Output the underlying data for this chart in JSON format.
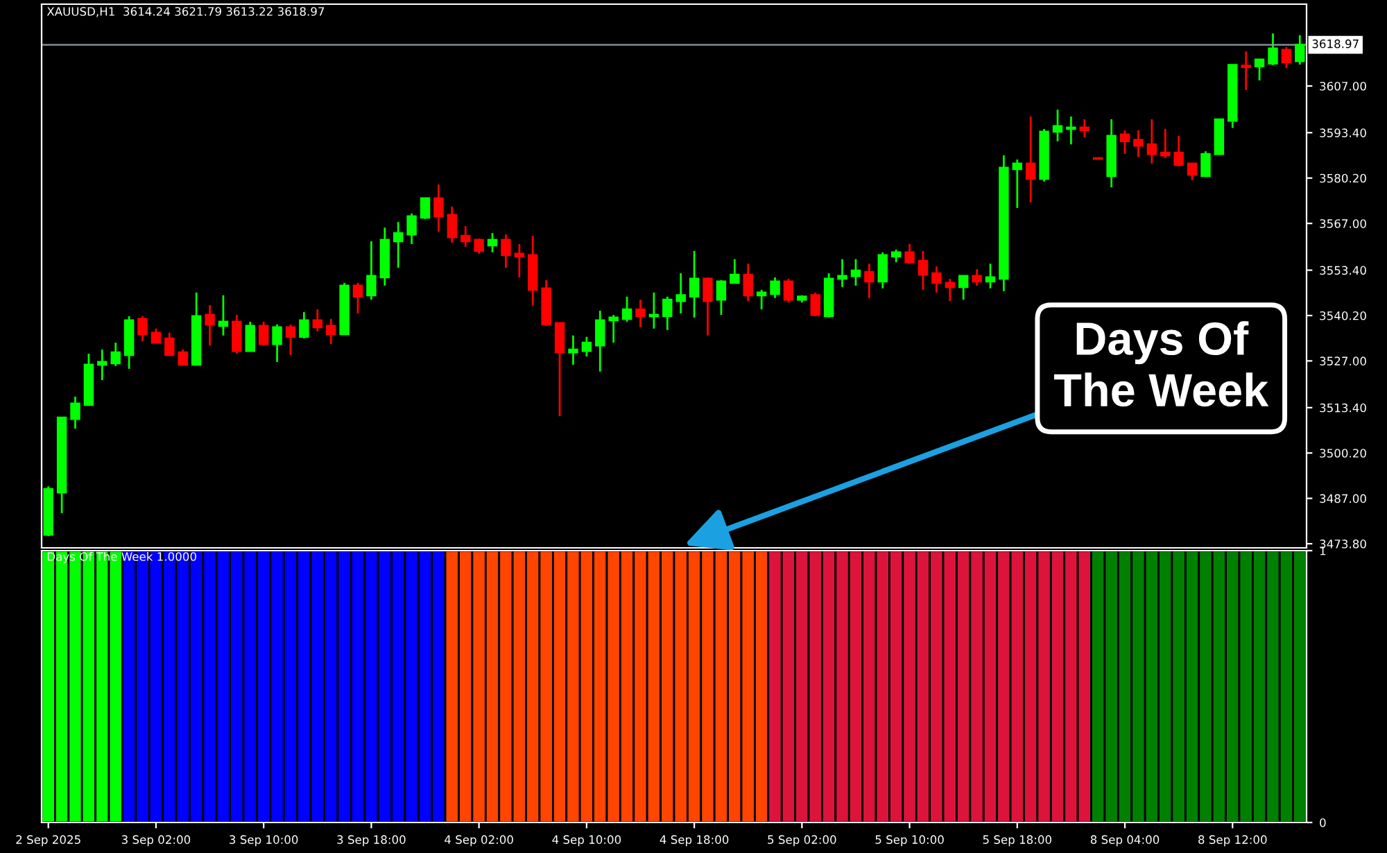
{
  "chart_data": [
    {
      "type": "candlestick",
      "title": "XAUUSD,H1  3614.24 3621.79 3613.22 3618.97",
      "categories": [
        null,
        null,
        null,
        null,
        null,
        null,
        null,
        null,
        null,
        null,
        null,
        null,
        null,
        null,
        null,
        null,
        null,
        null,
        null,
        null,
        null,
        null,
        null,
        null,
        null,
        null,
        null,
        null,
        null,
        null,
        null,
        null,
        null,
        null,
        null,
        null,
        null,
        null,
        null,
        null,
        null,
        null,
        null,
        null,
        null,
        null,
        null,
        null,
        null,
        null,
        null,
        null,
        null,
        null,
        null,
        null,
        null,
        null,
        null,
        null,
        null,
        null,
        null,
        null,
        null,
        null,
        null,
        null,
        null,
        null,
        null,
        null,
        null,
        null,
        null,
        null,
        null,
        null,
        null,
        null,
        null,
        null,
        null,
        null,
        null,
        null,
        null,
        null,
        null,
        null,
        null,
        null,
        null,
        null
      ],
      "ohlc": [
        [
          3476.4,
          3490.5,
          3476.0,
          3489.7
        ],
        [
          3488.7,
          3510.5,
          3482.7,
          3510.5
        ],
        [
          3510.1,
          3516.6,
          3507.3,
          3514.6
        ],
        [
          3514.2,
          3529.1,
          3514.2,
          3525.9
        ],
        [
          3525.9,
          3530.3,
          3521.4,
          3526.7
        ],
        [
          3526.3,
          3532.3,
          3525.5,
          3529.5
        ],
        [
          3528.7,
          3540.0,
          3524.7,
          3538.8
        ],
        [
          3539.2,
          3540.0,
          3532.7,
          3534.8
        ],
        [
          3535.2,
          3536.4,
          3532.3,
          3532.3
        ],
        [
          3533.5,
          3535.2,
          3528.7,
          3528.7
        ],
        [
          3529.5,
          3530.3,
          3525.9,
          3525.9
        ],
        [
          3525.9,
          3546.9,
          3525.9,
          3540.0
        ],
        [
          3540.4,
          3543.2,
          3531.5,
          3537.6
        ],
        [
          3537.2,
          3546.1,
          3534.4,
          3538.4
        ],
        [
          3538.4,
          3540.4,
          3529.1,
          3529.9
        ],
        [
          3529.9,
          3538.4,
          3529.9,
          3537.2
        ],
        [
          3537.2,
          3538.4,
          3531.5,
          3531.9
        ],
        [
          3531.9,
          3537.6,
          3526.7,
          3536.8
        ],
        [
          3536.8,
          3537.6,
          3528.7,
          3534.0
        ],
        [
          3534.0,
          3541.2,
          3533.5,
          3538.8
        ],
        [
          3538.8,
          3542.0,
          3535.6,
          3536.8
        ],
        [
          3537.2,
          3539.2,
          3531.9,
          3534.8
        ],
        [
          3534.8,
          3549.7,
          3534.8,
          3548.9
        ],
        [
          3548.9,
          3549.7,
          3540.8,
          3545.7
        ],
        [
          3546.1,
          3561.8,
          3544.8,
          3551.7
        ],
        [
          3551.3,
          3565.8,
          3548.9,
          3562.2
        ],
        [
          3561.8,
          3567.4,
          3554.1,
          3564.2
        ],
        [
          3563.8,
          3569.9,
          3561.0,
          3569.1
        ],
        [
          3568.7,
          3574.3,
          3568.3,
          3574.3
        ],
        [
          3574.3,
          3578.3,
          3564.6,
          3569.1
        ],
        [
          3569.5,
          3571.9,
          3561.4,
          3563.0
        ],
        [
          3563.4,
          3566.2,
          3560.2,
          3561.8
        ],
        [
          3562.2,
          3562.6,
          3558.2,
          3559.0
        ],
        [
          3560.6,
          3564.2,
          3558.6,
          3562.2
        ],
        [
          3562.2,
          3563.8,
          3554.1,
          3557.8
        ],
        [
          3558.2,
          3561.0,
          3551.3,
          3557.4
        ],
        [
          3557.8,
          3563.4,
          3543.2,
          3547.7
        ],
        [
          3548.1,
          3550.5,
          3537.2,
          3537.6
        ],
        [
          3538.0,
          3538.0,
          3510.9,
          3529.5
        ],
        [
          3529.5,
          3534.4,
          3525.9,
          3530.3
        ],
        [
          3529.9,
          3534.0,
          3528.3,
          3532.3
        ],
        [
          3531.5,
          3541.6,
          3523.9,
          3538.8
        ],
        [
          3538.8,
          3540.4,
          3532.3,
          3539.6
        ],
        [
          3539.2,
          3545.7,
          3538.4,
          3542.0
        ],
        [
          3542.0,
          3544.8,
          3536.8,
          3540.0
        ],
        [
          3540.0,
          3546.9,
          3536.4,
          3540.4
        ],
        [
          3540.0,
          3545.7,
          3536.0,
          3544.8
        ],
        [
          3544.4,
          3552.5,
          3540.8,
          3546.1
        ],
        [
          3545.7,
          3559.0,
          3539.6,
          3550.9
        ],
        [
          3550.9,
          3551.3,
          3534.4,
          3544.4
        ],
        [
          3544.8,
          3550.5,
          3540.4,
          3550.1
        ],
        [
          3549.7,
          3556.6,
          3549.7,
          3552.1
        ],
        [
          3552.1,
          3555.3,
          3544.4,
          3546.1
        ],
        [
          3546.1,
          3547.7,
          3542.0,
          3546.9
        ],
        [
          3546.5,
          3551.3,
          3545.3,
          3550.1
        ],
        [
          3550.1,
          3550.9,
          3544.0,
          3544.8
        ],
        [
          3544.8,
          3546.1,
          3544.0,
          3545.7
        ],
        [
          3546.1,
          3546.9,
          3540.0,
          3540.4
        ],
        [
          3540.0,
          3552.5,
          3539.6,
          3550.9
        ],
        [
          3550.9,
          3556.6,
          3548.5,
          3551.7
        ],
        [
          3551.7,
          3556.6,
          3548.9,
          3553.3
        ],
        [
          3552.9,
          3555.3,
          3545.3,
          3550.1
        ],
        [
          3550.1,
          3558.6,
          3548.1,
          3557.8
        ],
        [
          3557.4,
          3559.4,
          3555.7,
          3558.6
        ],
        [
          3558.6,
          3561.0,
          3555.3,
          3555.7
        ],
        [
          3556.1,
          3559.0,
          3547.7,
          3552.1
        ],
        [
          3552.5,
          3554.5,
          3546.9,
          3549.7
        ],
        [
          3549.7,
          3550.9,
          3544.4,
          3548.5
        ],
        [
          3548.5,
          3551.7,
          3544.8,
          3551.7
        ],
        [
          3551.7,
          3553.7,
          3548.9,
          3550.1
        ],
        [
          3550.1,
          3555.3,
          3548.1,
          3551.3
        ],
        [
          3550.9,
          3586.8,
          3547.3,
          3583.2
        ],
        [
          3582.8,
          3585.6,
          3571.5,
          3584.4
        ],
        [
          3584.4,
          3598.1,
          3573.1,
          3580.0
        ],
        [
          3580.0,
          3594.5,
          3579.2,
          3593.7
        ],
        [
          3593.7,
          3600.1,
          3590.9,
          3595.3
        ],
        [
          3594.5,
          3598.1,
          3590.0,
          3594.9
        ],
        [
          3594.9,
          3597.3,
          3592.1,
          3594.1
        ],
        [
          3586.0,
          3586.0,
          3585.8,
          3585.8
        ],
        [
          3580.8,
          3597.3,
          3577.5,
          3592.5
        ],
        [
          3592.9,
          3594.1,
          3587.2,
          3590.9
        ],
        [
          3591.3,
          3594.1,
          3586.4,
          3589.6
        ],
        [
          3590.0,
          3597.3,
          3584.4,
          3587.2
        ],
        [
          3587.6,
          3594.5,
          3586.0,
          3586.8
        ],
        [
          3587.6,
          3592.5,
          3583.6,
          3584.0
        ],
        [
          3584.4,
          3584.4,
          3579.6,
          3581.2
        ],
        [
          3580.8,
          3588.0,
          3580.8,
          3587.2
        ],
        [
          3587.2,
          3597.3,
          3587.2,
          3597.3
        ],
        [
          3596.9,
          3613.1,
          3594.8,
          3613.1
        ],
        [
          3612.9,
          3617.1,
          3605.8,
          3612.5
        ],
        [
          3612.7,
          3614.9,
          3608.6,
          3614.7
        ],
        [
          3613.5,
          3622.3,
          3613.1,
          3617.9
        ],
        [
          3617.5,
          3618.3,
          3612.2,
          3613.9
        ],
        [
          3614.24,
          3621.79,
          3613.22,
          3618.97
        ]
      ],
      "colors": [
        "#00ff00",
        "#00ff00",
        "#00ff00",
        "#00ff00",
        "#00ff00",
        "#00ff00",
        "#00ff00",
        "#ff0000",
        "#ff0000",
        "#ff0000",
        "#ff0000",
        "#00ff00",
        "#ff0000",
        "#00ff00",
        "#ff0000",
        "#00ff00",
        "#ff0000",
        "#00ff00",
        "#ff0000",
        "#00ff00",
        "#ff0000",
        "#ff0000",
        "#00ff00",
        "#ff0000",
        "#00ff00",
        "#00ff00",
        "#00ff00",
        "#00ff00",
        "#00ff00",
        "#ff0000",
        "#ff0000",
        "#ff0000",
        "#ff0000",
        "#00ff00",
        "#ff0000",
        "#ff0000",
        "#ff0000",
        "#ff0000",
        "#ff0000",
        "#00ff00",
        "#00ff00",
        "#00ff00",
        "#00ff00",
        "#00ff00",
        "#ff0000",
        "#00ff00",
        "#00ff00",
        "#00ff00",
        "#00ff00",
        "#ff0000",
        "#00ff00",
        "#00ff00",
        "#ff0000",
        "#00ff00",
        "#00ff00",
        "#ff0000",
        "#00ff00",
        "#ff0000",
        "#00ff00",
        "#00ff00",
        "#00ff00",
        "#ff0000",
        "#00ff00",
        "#00ff00",
        "#ff0000",
        "#ff0000",
        "#ff0000",
        "#ff0000",
        "#00ff00",
        "#ff0000",
        "#00ff00",
        "#00ff00",
        "#00ff00",
        "#ff0000",
        "#00ff00",
        "#00ff00",
        "#00ff00",
        "#ff0000",
        "#ff0000",
        "#00ff00",
        "#ff0000",
        "#ff0000",
        "#ff0000",
        "#ff0000",
        "#ff0000",
        "#ff0000",
        "#00ff00",
        "#00ff00",
        "#00ff00",
        "#ff0000",
        "#00ff00",
        "#00ff00",
        "#ff0000",
        "#00ff00"
      ],
      "ylim": [
        3472.6,
        3630.8
      ],
      "yticks": [
        {
          "value": 3473.8,
          "label": "3473.80"
        },
        {
          "value": 3487,
          "label": "3487.00"
        },
        {
          "value": 3500.2,
          "label": "3500.20"
        },
        {
          "value": 3513.4,
          "label": "3513.40"
        },
        {
          "value": 3527,
          "label": "3527.00"
        },
        {
          "value": 3540.2,
          "label": "3540.20"
        },
        {
          "value": 3553.4,
          "label": "3553.40"
        },
        {
          "value": 3567,
          "label": "3567.00"
        },
        {
          "value": 3580.2,
          "label": "3580.20"
        },
        {
          "value": 3593.4,
          "label": "3593.40"
        },
        {
          "value": 3607,
          "label": "3607.00"
        }
      ],
      "ref_lines": [
        {
          "axis": "y",
          "value": 3618.97,
          "label": "3618.97",
          "color": "#8c9aa8"
        }
      ],
      "annotations": [
        "Days Of\nThe Week"
      ],
      "tick_labels": "y"
    },
    {
      "type": "bar",
      "title": "Days Of The Week 1.0000",
      "categories": [
        "2 Sep 2025",
        null,
        null,
        null,
        null,
        null,
        null,
        null,
        "3 Sep 02:00",
        null,
        null,
        null,
        null,
        null,
        null,
        null,
        "3 Sep 10:00",
        null,
        null,
        null,
        null,
        null,
        null,
        null,
        "3 Sep 18:00",
        null,
        null,
        null,
        null,
        null,
        null,
        null,
        "4 Sep 02:00",
        null,
        null,
        null,
        null,
        null,
        null,
        null,
        "4 Sep 10:00",
        null,
        null,
        null,
        null,
        null,
        null,
        null,
        "4 Sep 18:00",
        null,
        null,
        null,
        null,
        null,
        null,
        null,
        "5 Sep 02:00",
        null,
        null,
        null,
        null,
        null,
        null,
        null,
        "5 Sep 10:00",
        null,
        null,
        null,
        null,
        null,
        null,
        null,
        "5 Sep 18:00",
        null,
        null,
        null,
        null,
        null,
        null,
        null,
        "8 Sep 04:00",
        null,
        null,
        null,
        null,
        null,
        null,
        null,
        "8 Sep 12:00",
        null,
        null,
        null,
        null,
        null
      ],
      "values": [
        1,
        1,
        1,
        1,
        1,
        1,
        1,
        1,
        1,
        1,
        1,
        1,
        1,
        1,
        1,
        1,
        1,
        1,
        1,
        1,
        1,
        1,
        1,
        1,
        1,
        1,
        1,
        1,
        1,
        1,
        1,
        1,
        1,
        1,
        1,
        1,
        1,
        1,
        1,
        1,
        1,
        1,
        1,
        1,
        1,
        1,
        1,
        1,
        1,
        1,
        1,
        1,
        1,
        1,
        1,
        1,
        1,
        1,
        1,
        1,
        1,
        1,
        1,
        1,
        1,
        1,
        1,
        1,
        1,
        1,
        1,
        1,
        1,
        1,
        1,
        1,
        1,
        1,
        1,
        1,
        1,
        1,
        1,
        1,
        1,
        1,
        1,
        1,
        1,
        1,
        1,
        1,
        1,
        1
      ],
      "colors": [
        "#00ff00",
        "#00ff00",
        "#00ff00",
        "#00ff00",
        "#00ff00",
        "#00ff00",
        "#0000ff",
        "#0000ff",
        "#0000ff",
        "#0000ff",
        "#0000ff",
        "#0000ff",
        "#0000ff",
        "#0000ff",
        "#0000ff",
        "#0000ff",
        "#0000ff",
        "#0000ff",
        "#0000ff",
        "#0000ff",
        "#0000ff",
        "#0000ff",
        "#0000ff",
        "#0000ff",
        "#0000ff",
        "#0000ff",
        "#0000ff",
        "#0000ff",
        "#0000ff",
        "#0000ff",
        "#ff4500",
        "#ff4500",
        "#ff4500",
        "#ff4500",
        "#ff4500",
        "#ff4500",
        "#ff4500",
        "#ff4500",
        "#ff4500",
        "#ff4500",
        "#ff4500",
        "#ff4500",
        "#ff4500",
        "#ff4500",
        "#ff4500",
        "#ff4500",
        "#ff4500",
        "#ff4500",
        "#ff4500",
        "#ff4500",
        "#ff4500",
        "#ff4500",
        "#ff4500",
        "#ff4500",
        "#dc143c",
        "#dc143c",
        "#dc143c",
        "#dc143c",
        "#dc143c",
        "#dc143c",
        "#dc143c",
        "#dc143c",
        "#dc143c",
        "#dc143c",
        "#dc143c",
        "#dc143c",
        "#dc143c",
        "#dc143c",
        "#dc143c",
        "#dc143c",
        "#dc143c",
        "#dc143c",
        "#dc143c",
        "#dc143c",
        "#dc143c",
        "#dc143c",
        "#dc143c",
        "#dc143c",
        "#008000",
        "#008000",
        "#008000",
        "#008000",
        "#008000",
        "#008000",
        "#008000",
        "#008000",
        "#008000",
        "#008000",
        "#008000",
        "#008000",
        "#008000",
        "#008000",
        "#008000",
        "#008000"
      ],
      "ylim": [
        0,
        1
      ],
      "yticks": [
        0,
        1
      ]
    }
  ]
}
